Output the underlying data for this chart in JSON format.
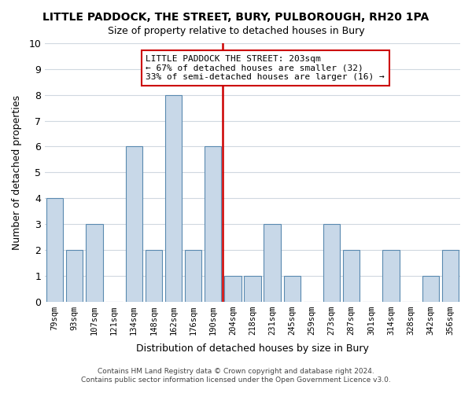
{
  "title": "LITTLE PADDOCK, THE STREET, BURY, PULBOROUGH, RH20 1PA",
  "subtitle": "Size of property relative to detached houses in Bury",
  "xlabel": "Distribution of detached houses by size in Bury",
  "ylabel": "Number of detached properties",
  "bin_labels": [
    "79sqm",
    "93sqm",
    "107sqm",
    "121sqm",
    "134sqm",
    "148sqm",
    "162sqm",
    "176sqm",
    "190sqm",
    "204sqm",
    "218sqm",
    "231sqm",
    "245sqm",
    "259sqm",
    "273sqm",
    "287sqm",
    "301sqm",
    "314sqm",
    "328sqm",
    "342sqm",
    "356sqm"
  ],
  "bar_heights": [
    4,
    2,
    3,
    0,
    6,
    2,
    8,
    2,
    6,
    1,
    1,
    3,
    1,
    0,
    3,
    2,
    0,
    2,
    0,
    1,
    2
  ],
  "bar_color": "#c8d8e8",
  "bar_edge_color": "#5a8ab0",
  "reference_line_x": 8.5,
  "reference_line_color": "#cc0000",
  "annotation_text": "LITTLE PADDOCK THE STREET: 203sqm\n← 67% of detached houses are smaller (32)\n33% of semi-detached houses are larger (16) →",
  "annotation_box_color": "#ffffff",
  "annotation_box_edge": "#cc0000",
  "ylim": [
    0,
    10
  ],
  "yticks": [
    0,
    1,
    2,
    3,
    4,
    5,
    6,
    7,
    8,
    9,
    10
  ],
  "footer_line1": "Contains HM Land Registry data © Crown copyright and database right 2024.",
  "footer_line2": "Contains public sector information licensed under the Open Government Licence v3.0.",
  "background_color": "#ffffff",
  "grid_color": "#d0d8e0"
}
